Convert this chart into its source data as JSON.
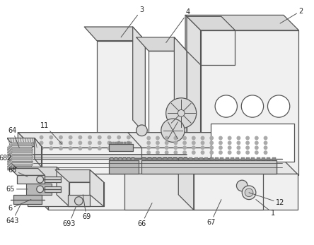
{
  "bg_color": "#ffffff",
  "line_color": "#555555",
  "line_width": 0.9,
  "fig_width": 4.44,
  "fig_height": 3.47,
  "dpi": 100,
  "label_fs": 7.0,
  "gray_light": "#f0f0f0",
  "gray_mid": "#d8d8d8",
  "gray_dark": "#b8b8b8",
  "gray_side": "#e0e0e0"
}
